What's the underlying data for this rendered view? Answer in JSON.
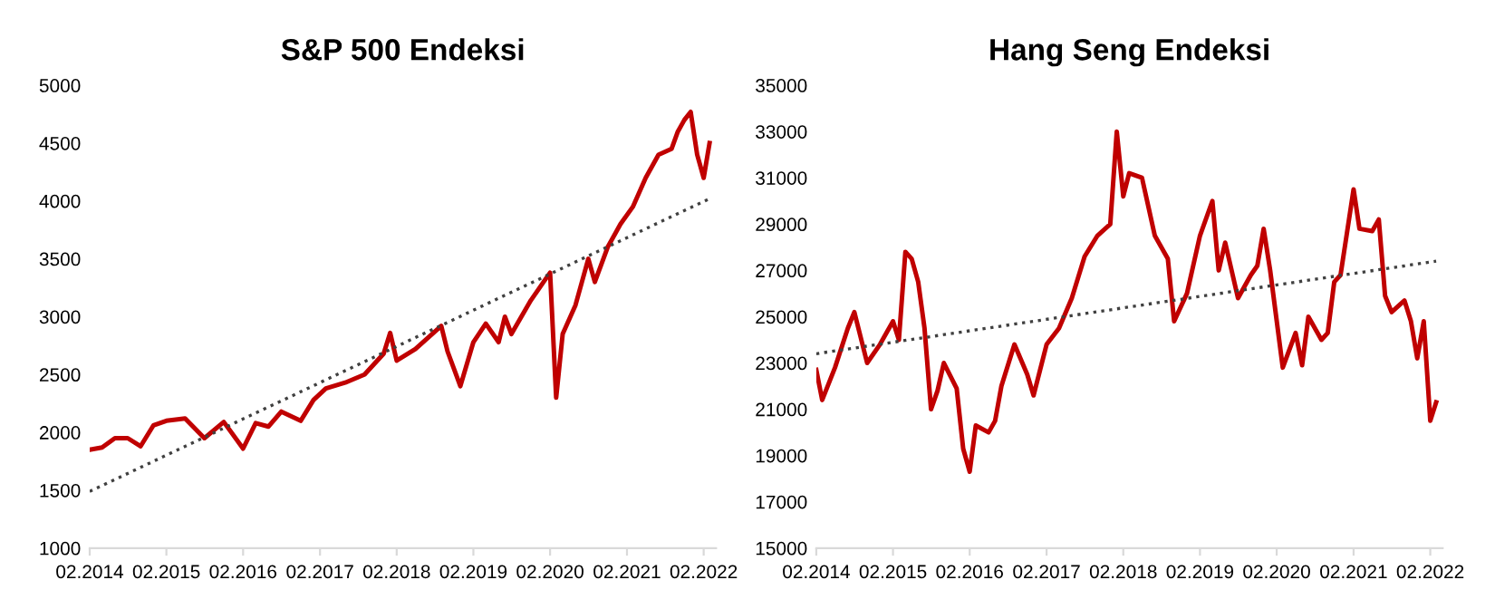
{
  "chart_data": [
    {
      "type": "line",
      "title": "S&P 500 Endeksi",
      "ylim": [
        1000,
        5000
      ],
      "yticks": [
        1000,
        1500,
        2000,
        2500,
        3000,
        3500,
        4000,
        4500,
        5000
      ],
      "xlim": [
        "2014-02",
        "2022-04"
      ],
      "xticks": [
        {
          "value": "2014-02",
          "label": "02.2014"
        },
        {
          "value": "2015-02",
          "label": "02.2015"
        },
        {
          "value": "2016-02",
          "label": "02.2016"
        },
        {
          "value": "2017-02",
          "label": "02.2017"
        },
        {
          "value": "2018-02",
          "label": "02.2018"
        },
        {
          "value": "2019-02",
          "label": "02.2019"
        },
        {
          "value": "2020-02",
          "label": "02.2020"
        },
        {
          "value": "2021-02",
          "label": "02.2021"
        },
        {
          "value": "2022-02",
          "label": "02.2022"
        }
      ],
      "grid": false,
      "legend": false,
      "series": [
        {
          "color": "#c00000",
          "line_style": "solid",
          "x": [
            "2014-02",
            "2014-04",
            "2014-06",
            "2014-08",
            "2014-10",
            "2014-12",
            "2015-02",
            "2015-05",
            "2015-08",
            "2015-11",
            "2016-02",
            "2016-04",
            "2016-06",
            "2016-08",
            "2016-11",
            "2017-01",
            "2017-03",
            "2017-06",
            "2017-09",
            "2017-12",
            "2018-01",
            "2018-02",
            "2018-05",
            "2018-09",
            "2018-10",
            "2018-12",
            "2019-02",
            "2019-04",
            "2019-06",
            "2019-07",
            "2019-08",
            "2019-11",
            "2020-01",
            "2020-02",
            "2020-03",
            "2020-04",
            "2020-06",
            "2020-08",
            "2020-09",
            "2020-11",
            "2021-01",
            "2021-03",
            "2021-05",
            "2021-07",
            "2021-09",
            "2021-10",
            "2021-11",
            "2021-12",
            "2022-01",
            "2022-02",
            "2022-03"
          ],
          "values": [
            1850,
            1870,
            1950,
            1950,
            1880,
            2060,
            2100,
            2120,
            1950,
            2090,
            1860,
            2080,
            2050,
            2180,
            2100,
            2280,
            2380,
            2430,
            2500,
            2680,
            2860,
            2620,
            2720,
            2920,
            2700,
            2400,
            2780,
            2940,
            2780,
            3000,
            2850,
            3140,
            3300,
            3380,
            2300,
            2850,
            3100,
            3500,
            3300,
            3600,
            3800,
            3950,
            4200,
            4400,
            4450,
            4600,
            4700,
            4770,
            4400,
            4200,
            4500
          ]
        },
        {
          "type": "line",
          "color": "#404040",
          "line_style": "dotted",
          "x": [
            "2014-02",
            "2022-03"
          ],
          "values": [
            1490,
            4020
          ]
        }
      ]
    },
    {
      "type": "line",
      "title": "Hang Seng Endeksi",
      "ylim": [
        15000,
        35000
      ],
      "yticks": [
        15000,
        17000,
        19000,
        21000,
        23000,
        25000,
        27000,
        29000,
        31000,
        33000,
        35000
      ],
      "xlim": [
        "2014-02",
        "2022-04"
      ],
      "xticks": [
        {
          "value": "2014-02",
          "label": "02.2014"
        },
        {
          "value": "2015-02",
          "label": "02.2015"
        },
        {
          "value": "2016-02",
          "label": "02.2016"
        },
        {
          "value": "2017-02",
          "label": "02.2017"
        },
        {
          "value": "2018-02",
          "label": "02.2018"
        },
        {
          "value": "2019-02",
          "label": "02.2019"
        },
        {
          "value": "2020-02",
          "label": "02.2020"
        },
        {
          "value": "2021-02",
          "label": "02.2021"
        },
        {
          "value": "2022-02",
          "label": "02.2022"
        }
      ],
      "grid": false,
      "legend": false,
      "series": [
        {
          "color": "#c00000",
          "line_style": "solid",
          "x": [
            "2014-02",
            "2014-03",
            "2014-05",
            "2014-07",
            "2014-08",
            "2014-10",
            "2014-12",
            "2015-02",
            "2015-03",
            "2015-04",
            "2015-05",
            "2015-06",
            "2015-07",
            "2015-08",
            "2015-09",
            "2015-10",
            "2015-12",
            "2016-01",
            "2016-02",
            "2016-03",
            "2016-05",
            "2016-06",
            "2016-07",
            "2016-09",
            "2016-11",
            "2016-12",
            "2017-02",
            "2017-04",
            "2017-06",
            "2017-08",
            "2017-10",
            "2017-12",
            "2018-01",
            "2018-02",
            "2018-03",
            "2018-05",
            "2018-07",
            "2018-09",
            "2018-10",
            "2018-12",
            "2019-02",
            "2019-04",
            "2019-05",
            "2019-06",
            "2019-08",
            "2019-10",
            "2019-11",
            "2019-12",
            "2020-01",
            "2020-03",
            "2020-05",
            "2020-06",
            "2020-07",
            "2020-09",
            "2020-10",
            "2020-11",
            "2020-12",
            "2021-02",
            "2021-03",
            "2021-05",
            "2021-06",
            "2021-07",
            "2021-08",
            "2021-10",
            "2021-11",
            "2021-12",
            "2022-01",
            "2022-02",
            "2022-03"
          ],
          "values": [
            22700,
            21400,
            22800,
            24500,
            25200,
            23000,
            23800,
            24800,
            24000,
            27800,
            27500,
            26500,
            24500,
            21000,
            21800,
            23000,
            21900,
            19300,
            18300,
            20300,
            20000,
            20500,
            22000,
            23800,
            22500,
            21600,
            23800,
            24500,
            25800,
            27600,
            28500,
            29000,
            33000,
            30200,
            31200,
            31000,
            28500,
            27500,
            24800,
            26000,
            28500,
            30000,
            27000,
            28200,
            25800,
            26800,
            27200,
            28800,
            27000,
            22800,
            24300,
            22900,
            25000,
            24000,
            24300,
            26500,
            26800,
            30500,
            28800,
            28700,
            29200,
            25900,
            25200,
            25700,
            24800,
            23200,
            24800,
            20500,
            21300
          ]
        },
        {
          "type": "line",
          "color": "#404040",
          "line_style": "dotted",
          "x": [
            "2014-02",
            "2022-03"
          ],
          "values": [
            23400,
            27400
          ]
        }
      ]
    }
  ]
}
